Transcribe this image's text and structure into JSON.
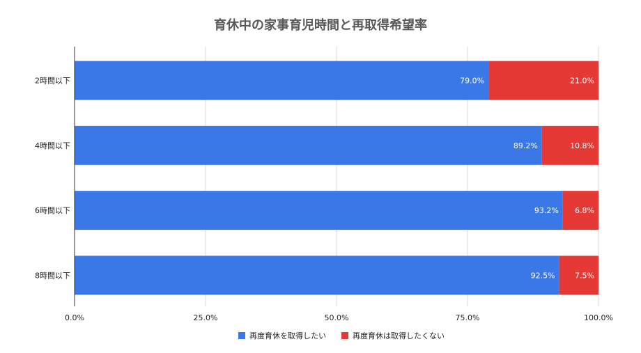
{
  "chart_data": {
    "type": "bar",
    "orientation": "horizontal",
    "stacked": true,
    "title": "育休中の家事育児時間と再取得希望率",
    "categories": [
      "2時間以下",
      "4時間以下",
      "6時間以下",
      "8時間以下"
    ],
    "series": [
      {
        "name": "再度育休を取得したい",
        "color": "#3b78e7",
        "values": [
          79.0,
          89.2,
          93.2,
          92.5
        ],
        "labels": [
          "79.0%",
          "89.2%",
          "93.2%",
          "92.5%"
        ]
      },
      {
        "name": "再度育休は取得したくない",
        "color": "#e53935",
        "values": [
          21.0,
          10.8,
          6.8,
          7.5
        ],
        "labels": [
          "21.0%",
          "10.8%",
          "6.8%",
          "7.5%"
        ]
      }
    ],
    "xlim": [
      0,
      100
    ],
    "xticks": [
      0,
      25,
      50,
      75,
      100
    ],
    "xtick_labels": [
      "0.0%",
      "25.0%",
      "50.0%",
      "75.0%",
      "100.0%"
    ],
    "xlabel": "",
    "ylabel": "",
    "grid": true,
    "legend_position": "bottom"
  }
}
